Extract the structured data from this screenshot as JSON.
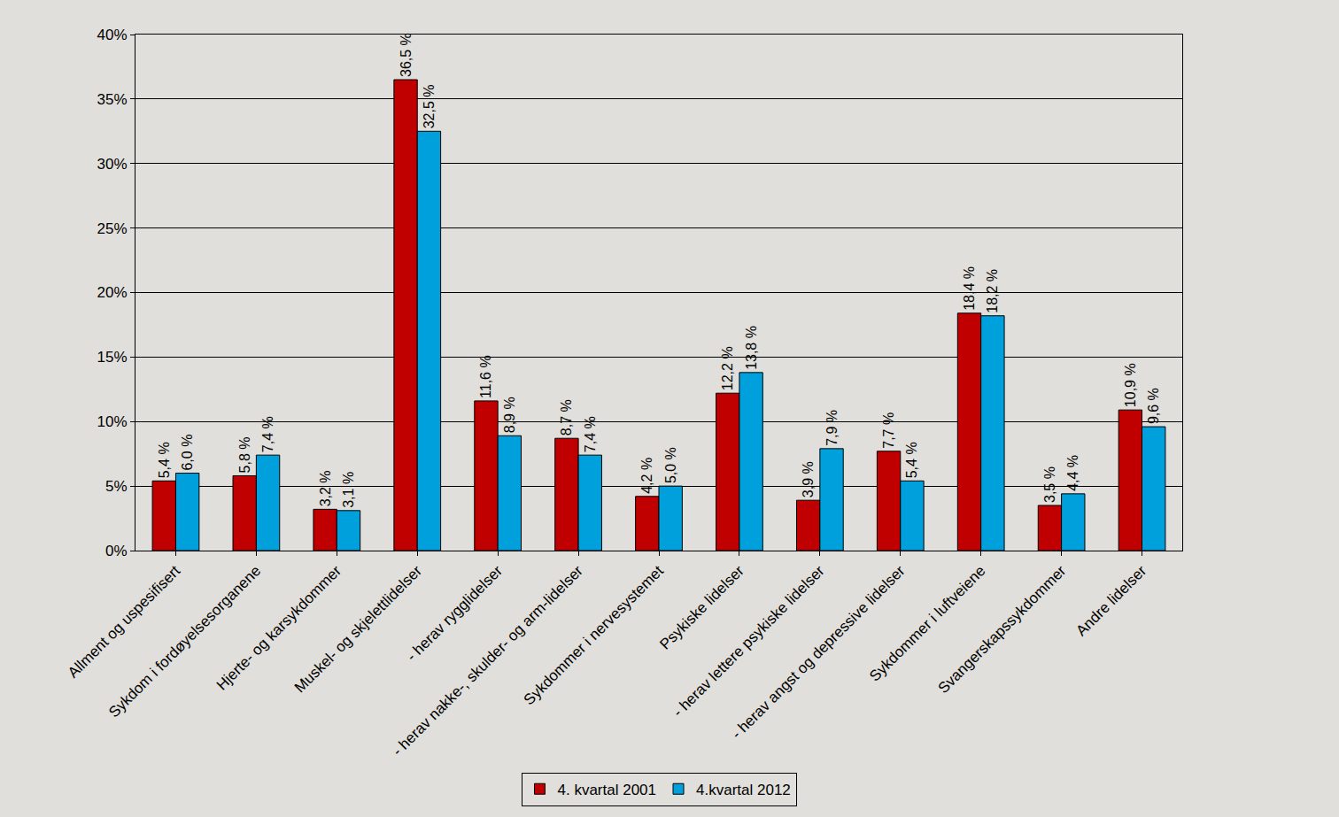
{
  "chart_data": {
    "type": "bar",
    "categories": [
      "Allment og uspesifisert",
      "Sykdom i fordøyelsesorganene",
      "Hjerte- og karsykdommer",
      "Muskel- og skjelettlidelser",
      "- herav rygglidelser",
      "- herav nakke-, skulder- og arm-lidelser",
      "Sykdommer i nervesystemet",
      "Psykiske lidelser",
      "- herav lettere psykiske lidelser",
      "- herav angst og depressive lidelser",
      "Sykdommer i luftveiene",
      "Svangerskapssykdommer",
      "Andre lidelser"
    ],
    "series": [
      {
        "name": "4. kvartal 2001",
        "color": "#c00000",
        "values": [
          5.4,
          5.8,
          3.2,
          36.5,
          11.6,
          8.7,
          4.2,
          12.2,
          3.9,
          7.7,
          18.4,
          3.5,
          10.9
        ],
        "value_labels": [
          "5,4 %",
          "5,8 %",
          "3,2 %",
          "36,5 %",
          "11,6 %",
          "8,7 %",
          "4,2 %",
          "12,2 %",
          "3,9 %",
          "7,7 %",
          "18,4 %",
          "3,5 %",
          "10,9 %"
        ]
      },
      {
        "name": "4.kvartal 2012",
        "color": "#00a0dc",
        "values": [
          6.0,
          7.4,
          3.1,
          32.5,
          8.9,
          7.4,
          5.0,
          13.8,
          7.9,
          5.4,
          18.2,
          4.4,
          9.6
        ],
        "value_labels": [
          "6,0 %",
          "7,4 %",
          "3,1 %",
          "32,5 %",
          "8,9 %",
          "7,4 %",
          "5,0 %",
          "13,8 %",
          "7,9 %",
          "5,4 %",
          "18,2 %",
          "4,4 %",
          "9,6 %"
        ]
      }
    ],
    "ylim": [
      0,
      40
    ],
    "yticks": [
      {
        "value": 0,
        "label": "0%"
      },
      {
        "value": 5,
        "label": "5%"
      },
      {
        "value": 10,
        "label": "10%"
      },
      {
        "value": 15,
        "label": "15%"
      },
      {
        "value": 20,
        "label": "20%"
      },
      {
        "value": 25,
        "label": "25%"
      },
      {
        "value": 30,
        "label": "30%"
      },
      {
        "value": 35,
        "label": "35%"
      },
      {
        "value": 40,
        "label": "40%"
      }
    ],
    "grid": true,
    "legend": "bottom",
    "data_labels": true
  }
}
